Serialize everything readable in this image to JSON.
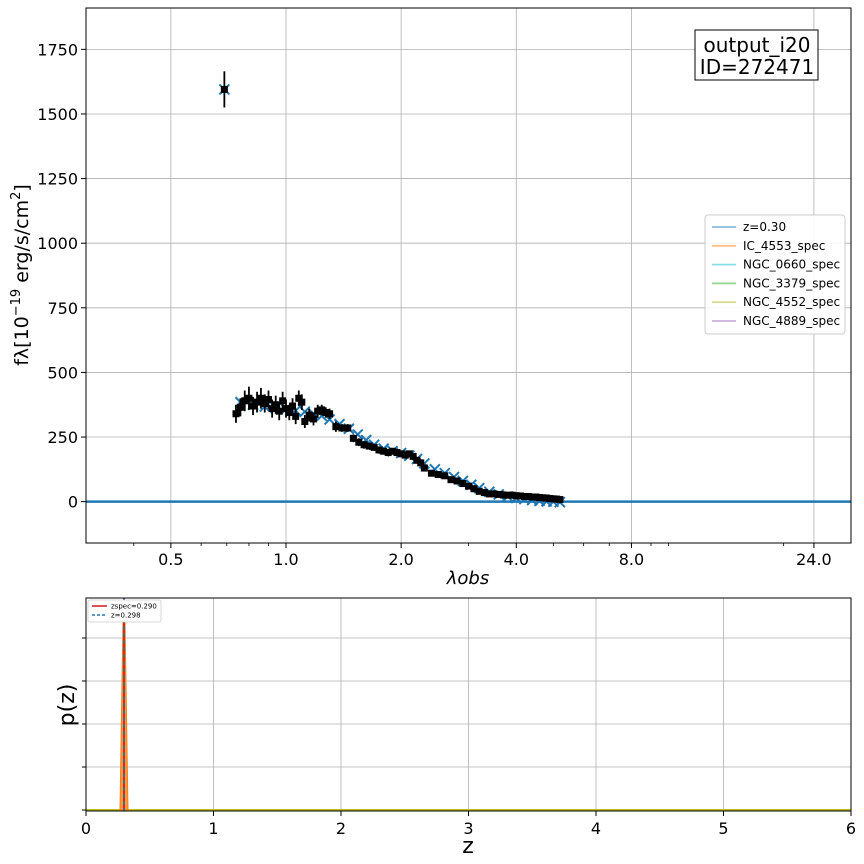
{
  "chart_data": [
    {
      "type": "scatter",
      "xlabel": "λobs",
      "ylabel_main": "fλ[10",
      "ylabel_sup1": "−19",
      "ylabel_mid": " erg/s/cm",
      "ylabel_sup2": "2",
      "ylabel_end": "]",
      "x_scale": "log",
      "xlim": [
        0.3,
        30.0
      ],
      "ylim": [
        -160,
        1910
      ],
      "x_ticks": [
        0.5,
        1.0,
        2.0,
        4.0,
        8.0,
        24.0
      ],
      "x_tick_labels": [
        "0.5",
        "1.0",
        "2.0",
        "4.0",
        "8.0",
        "24.0"
      ],
      "y_ticks": [
        0,
        250,
        500,
        750,
        1000,
        1250,
        1500,
        1750
      ],
      "y_tick_labels": [
        "0",
        "250",
        "500",
        "750",
        "1000",
        "1250",
        "1500",
        "1750"
      ],
      "grid": true,
      "annotation": [
        "output_i20",
        "ID=272471"
      ],
      "legend_position": "center-right",
      "legend": [
        {
          "label": "z=0.30",
          "color": "#1f77b4"
        },
        {
          "label": "IC_4553_spec",
          "color": "#ff7f0e"
        },
        {
          "label": "NGC_0660_spec",
          "color": "#17becf"
        },
        {
          "label": "NGC_3379_spec",
          "color": "#2ca02c"
        },
        {
          "label": "NGC_4552_spec",
          "color": "#bcbd22"
        },
        {
          "label": "NGC_4889_spec",
          "color": "#9467bd"
        }
      ],
      "baseline_y": 0,
      "model_color": "#1f77b4",
      "observed_points": {
        "x": [
          0.69,
          0.74,
          0.76,
          0.78,
          0.8,
          0.82,
          0.84,
          0.86,
          0.88,
          0.9,
          0.92,
          0.94,
          0.96,
          0.98,
          1.0,
          1.02,
          1.04,
          1.06,
          1.08,
          1.1,
          1.12,
          1.15,
          1.18,
          1.21,
          1.24,
          1.27,
          1.3,
          1.35,
          1.4,
          1.45,
          1.5,
          1.55,
          1.6,
          1.65,
          1.7,
          1.75,
          1.8,
          1.85,
          1.9,
          1.95,
          2.0,
          2.05,
          2.1,
          2.15,
          2.2,
          2.25,
          2.3,
          2.4,
          2.5,
          2.6,
          2.7,
          2.8,
          2.9,
          3.0,
          3.1,
          3.2,
          3.3,
          3.4,
          3.5,
          3.6,
          3.7,
          3.8,
          3.9,
          4.0,
          4.1,
          4.2,
          4.3,
          4.4,
          4.5,
          4.6,
          4.7,
          4.8,
          4.9,
          5.0,
          5.1,
          5.2
        ],
        "y": [
          1595,
          340,
          365,
          390,
          400,
          370,
          385,
          400,
          380,
          395,
          360,
          375,
          350,
          390,
          360,
          345,
          370,
          330,
          400,
          385,
          310,
          335,
          320,
          350,
          355,
          345,
          340,
          290,
          285,
          285,
          245,
          230,
          220,
          215,
          210,
          200,
          195,
          190,
          195,
          190,
          185,
          180,
          185,
          175,
          160,
          150,
          130,
          110,
          105,
          100,
          85,
          80,
          70,
          60,
          50,
          40,
          35,
          30,
          30,
          28,
          26,
          25,
          25,
          23,
          22,
          20,
          20,
          18,
          18,
          16,
          15,
          14,
          12,
          11,
          10,
          8
        ],
        "yerr": [
          70,
          35,
          35,
          40,
          45,
          35,
          40,
          40,
          35,
          35,
          35,
          35,
          35,
          35,
          35,
          30,
          30,
          30,
          30,
          30,
          25,
          25,
          25,
          25,
          20,
          20,
          20,
          20,
          15,
          15,
          15,
          15,
          15,
          12,
          12,
          12,
          12,
          12,
          12,
          12,
          12,
          12,
          12,
          12,
          12,
          12,
          12,
          12,
          10,
          10,
          10,
          10,
          10,
          10,
          10,
          10,
          10,
          10,
          10,
          10,
          10,
          10,
          10,
          10,
          10,
          10,
          10,
          10,
          10,
          10,
          10,
          10,
          10,
          10,
          10,
          10
        ]
      },
      "model_points": {
        "x": [
          0.69,
          0.76,
          0.82,
          0.88,
          0.94,
          1.0,
          1.06,
          1.12,
          1.18,
          1.24,
          1.3,
          1.38,
          1.46,
          1.54,
          1.62,
          1.7,
          1.8,
          1.9,
          2.0,
          2.1,
          2.2,
          2.3,
          2.45,
          2.6,
          2.75,
          2.9,
          3.05,
          3.2,
          3.4,
          3.6,
          3.8,
          4.0,
          4.2,
          4.4,
          4.6,
          4.8,
          5.0,
          5.2
        ],
        "y": [
          1595,
          385,
          375,
          368,
          362,
          358,
          352,
          348,
          340,
          332,
          318,
          300,
          282,
          260,
          238,
          220,
          205,
          195,
          188,
          178,
          165,
          148,
          125,
          110,
          95,
          80,
          65,
          52,
          38,
          28,
          20,
          14,
          10,
          6,
          3,
          1,
          0,
          -2
        ]
      }
    },
    {
      "type": "line",
      "xlabel": "z",
      "ylabel": "p(z)",
      "xlim": [
        0,
        6
      ],
      "x_ticks": [
        0,
        1,
        2,
        3,
        4,
        5,
        6
      ],
      "x_tick_labels": [
        "0",
        "1",
        "2",
        "3",
        "4",
        "5",
        "6"
      ],
      "y_tick_labels": [],
      "grid": true,
      "legend_position": "top-left",
      "legend": [
        {
          "label": "zspec=0.290",
          "color": "#d62728",
          "style": "solid"
        },
        {
          "label": "z=0.298",
          "color": "#1f77b4",
          "style": "dashed"
        }
      ],
      "zspec": 0.29,
      "zphot": 0.298,
      "pz_peak_color": "#ff7f0e",
      "baseline_color": "#bcbd22"
    }
  ]
}
